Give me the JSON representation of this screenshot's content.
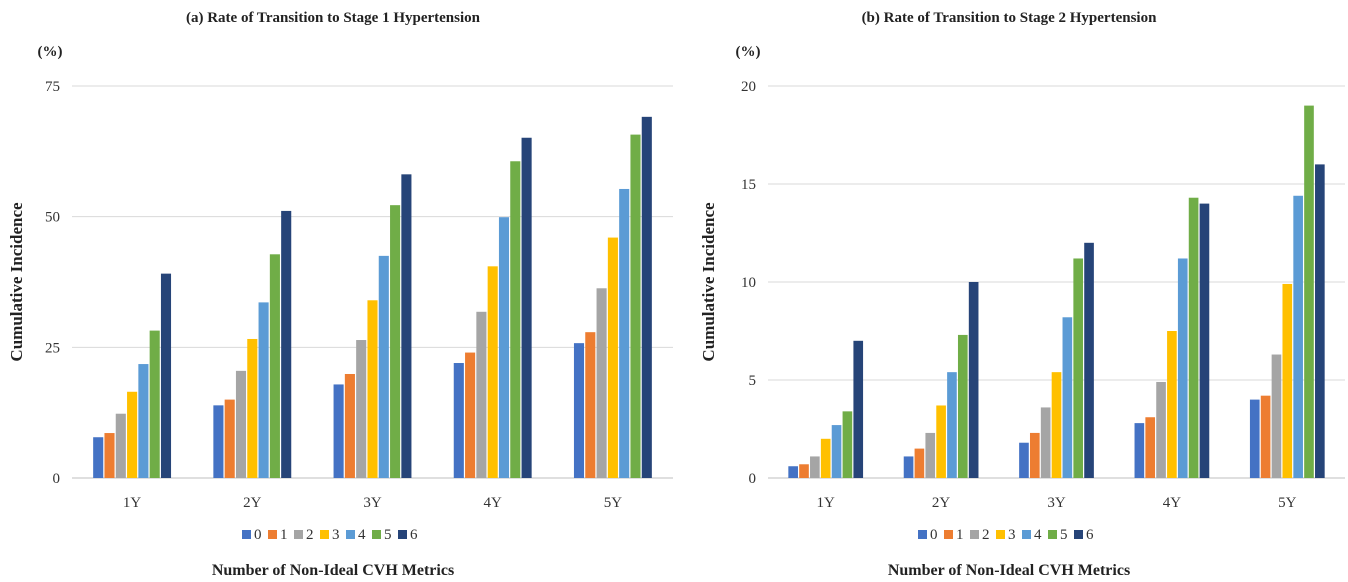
{
  "chart_data": [
    {
      "type": "bar",
      "title": "(a) Rate of Transition to Stage 1 Hypertension",
      "unit_label": "(%)",
      "ylabel": "Cumulative Incidence",
      "xlabel": "Number of Non-Ideal CVH Metrics",
      "categories": [
        "1Y",
        "2Y",
        "3Y",
        "4Y",
        "5Y"
      ],
      "ylim": [
        0,
        75
      ],
      "yticks": [
        0,
        25,
        50,
        75
      ],
      "grid": true,
      "legend_position": "bottom",
      "series": [
        {
          "name": "0",
          "color": "#4472C4",
          "values": [
            7.8,
            13.9,
            17.9,
            22.0,
            25.8
          ]
        },
        {
          "name": "1",
          "color": "#ED7D31",
          "values": [
            8.6,
            15.0,
            19.9,
            24.0,
            27.9
          ]
        },
        {
          "name": "2",
          "color": "#A5A5A5",
          "values": [
            12.3,
            20.5,
            26.4,
            31.8,
            36.3
          ]
        },
        {
          "name": "3",
          "color": "#FFC000",
          "values": [
            16.5,
            26.6,
            34.0,
            40.5,
            46.0
          ]
        },
        {
          "name": "4",
          "color": "#5B9BD5",
          "values": [
            21.8,
            33.6,
            42.5,
            49.9,
            55.3
          ]
        },
        {
          "name": "5",
          "color": "#70AD47",
          "values": [
            28.2,
            42.8,
            52.2,
            60.6,
            65.7
          ]
        },
        {
          "name": "6",
          "color": "#264478",
          "values": [
            39.1,
            51.1,
            58.1,
            65.1,
            69.1
          ]
        }
      ]
    },
    {
      "type": "bar",
      "title": "(b) Rate of Transition to Stage 2 Hypertension",
      "unit_label": "(%)",
      "ylabel": "Cumulative Incidence",
      "xlabel": "Number of Non-Ideal CVH Metrics",
      "categories": [
        "1Y",
        "2Y",
        "3Y",
        "4Y",
        "5Y"
      ],
      "ylim": [
        0,
        20
      ],
      "yticks": [
        0,
        5,
        10,
        15,
        20
      ],
      "grid": true,
      "legend_position": "bottom",
      "series": [
        {
          "name": "0",
          "color": "#4472C4",
          "values": [
            0.6,
            1.1,
            1.8,
            2.8,
            4.0
          ]
        },
        {
          "name": "1",
          "color": "#ED7D31",
          "values": [
            0.7,
            1.5,
            2.3,
            3.1,
            4.2
          ]
        },
        {
          "name": "2",
          "color": "#A5A5A5",
          "values": [
            1.1,
            2.3,
            3.6,
            4.9,
            6.3
          ]
        },
        {
          "name": "3",
          "color": "#FFC000",
          "values": [
            2.0,
            3.7,
            5.4,
            7.5,
            9.9
          ]
        },
        {
          "name": "4",
          "color": "#5B9BD5",
          "values": [
            2.7,
            5.4,
            8.2,
            11.2,
            14.4
          ]
        },
        {
          "name": "5",
          "color": "#70AD47",
          "values": [
            3.4,
            7.3,
            11.2,
            14.3,
            19.0
          ]
        },
        {
          "name": "6",
          "color": "#264478",
          "values": [
            7.0,
            10.0,
            12.0,
            14.0,
            16.0
          ]
        }
      ]
    }
  ]
}
